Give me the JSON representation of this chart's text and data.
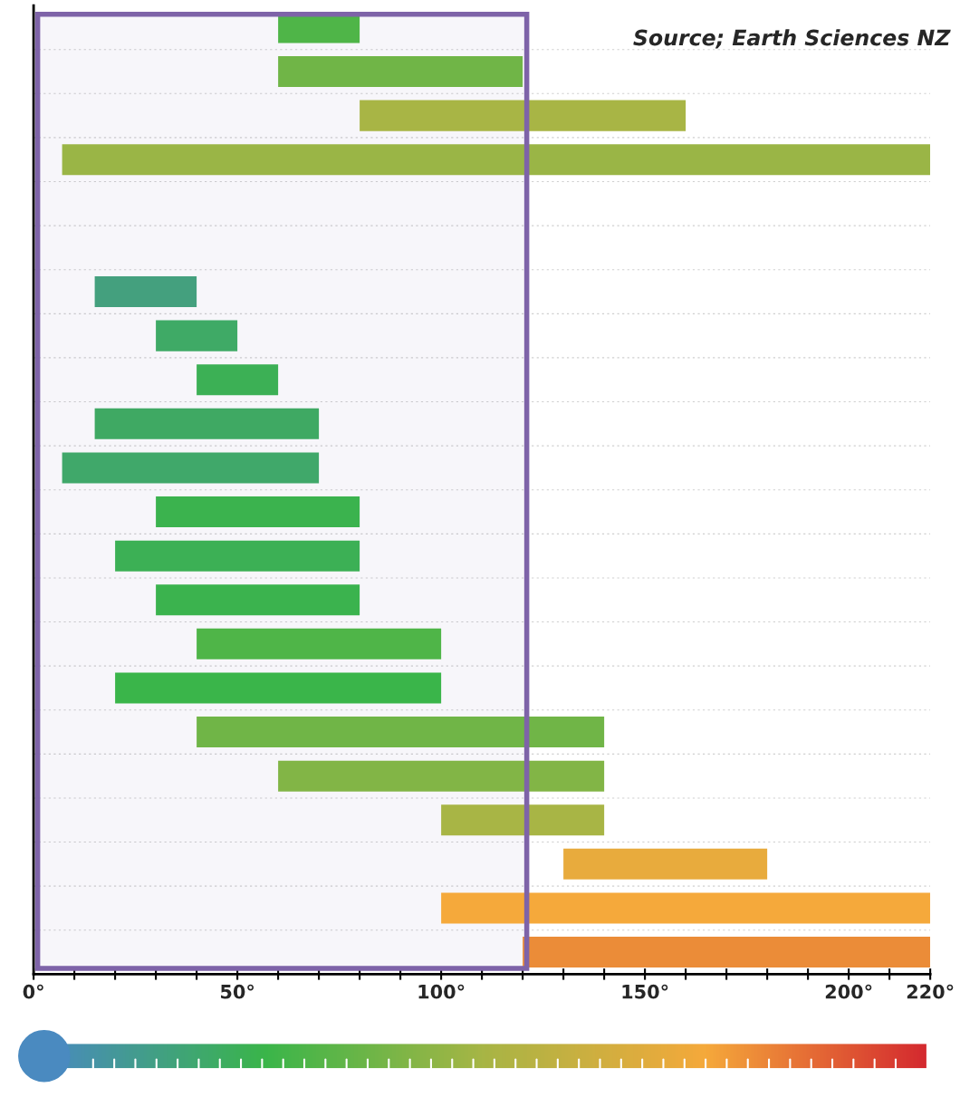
{
  "chart_data": {
    "type": "bar",
    "orientation": "horizontal",
    "categories": [
      null,
      null,
      null,
      null,
      null,
      null,
      null,
      null,
      null,
      null,
      null,
      null,
      null,
      null,
      null,
      null,
      null,
      null,
      null,
      null,
      null,
      null
    ],
    "base": [
      60,
      60,
      80,
      7,
      null,
      null,
      15,
      30,
      40,
      15,
      7,
      30,
      20,
      30,
      40,
      20,
      40,
      60,
      100,
      130,
      100,
      120
    ],
    "values": [
      20,
      60,
      80,
      213,
      null,
      null,
      25,
      20,
      20,
      55,
      63,
      50,
      60,
      50,
      60,
      80,
      100,
      80,
      40,
      50,
      120,
      100
    ],
    "colors": [
      "#4fb548",
      "#70b547",
      "#a8b545",
      "#9ab546",
      null,
      null,
      "#44a07e",
      "#3faa66",
      "#3cb055",
      "#3fa963",
      "#40a86a",
      "#3bb34e",
      "#3cb055",
      "#3bb34e",
      "#4fb548",
      "#3ab54a",
      "#70b547",
      "#82b546",
      "#a8b545",
      "#e8ab3d",
      "#f5a93b",
      "#eb8c38"
    ],
    "xlim": [
      0,
      220
    ],
    "xticks": [
      {
        "value": 0,
        "label": "0°"
      },
      {
        "value": 10,
        "label": null
      },
      {
        "value": 20,
        "label": null
      },
      {
        "value": 30,
        "label": null
      },
      {
        "value": 40,
        "label": null
      },
      {
        "value": 50,
        "label": "50°"
      },
      {
        "value": 60,
        "label": null
      },
      {
        "value": 70,
        "label": null
      },
      {
        "value": 80,
        "label": null
      },
      {
        "value": 90,
        "label": null
      },
      {
        "value": 100,
        "label": "100°"
      },
      {
        "value": 110,
        "label": null
      },
      {
        "value": 120,
        "label": null
      },
      {
        "value": 130,
        "label": null
      },
      {
        "value": 140,
        "label": null
      },
      {
        "value": 150,
        "label": "150°"
      },
      {
        "value": 160,
        "label": null
      },
      {
        "value": 170,
        "label": null
      },
      {
        "value": 180,
        "label": null
      },
      {
        "value": 190,
        "label": null
      },
      {
        "value": 200,
        "label": "200°"
      },
      {
        "value": 210,
        "label": null
      },
      {
        "value": 220,
        "label": "220°"
      }
    ],
    "tick_labels": "x",
    "bands": [
      {
        "axis": "x",
        "from": 1,
        "to": 121,
        "color": "#7e63a8"
      }
    ],
    "annotations": [
      "Source; Earth Sciences NZ"
    ]
  }
}
